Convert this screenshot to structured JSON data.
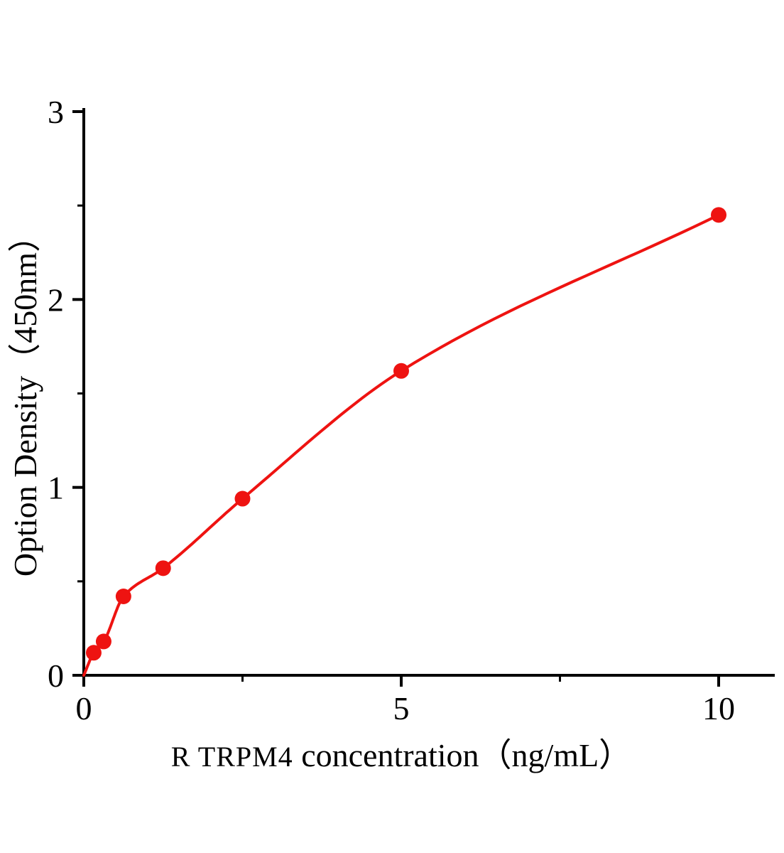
{
  "chart_data": {
    "type": "scatter",
    "title": "",
    "xlabel_protein": "R TRPM4",
    "xlabel_suffix": " concentration（ng/mL）",
    "xlabel": "R TRPM4  concentration（ng/mL）",
    "ylabel": "Option Density（450nm）",
    "x": [
      0.156,
      0.3125,
      0.625,
      1.25,
      2.5,
      5,
      10
    ],
    "y": [
      0.12,
      0.18,
      0.42,
      0.57,
      0.94,
      1.62,
      2.45
    ],
    "curve_origin": [
      0,
      0
    ],
    "xlim": [
      0,
      10
    ],
    "ylim": [
      0,
      3
    ],
    "x_major_ticks": [
      0,
      5,
      10
    ],
    "x_minor_ticks": [
      2.5,
      7.5
    ],
    "y_major_ticks": [
      0,
      1,
      2,
      3
    ],
    "y_minor_ticks": [
      0.5,
      1.5,
      2.5
    ],
    "grid": "off",
    "legend": "none",
    "line_color": "#ee1311",
    "marker_color": "#ee1311",
    "marker_radius": 11,
    "axis_color": "#000000",
    "background": "#ffffff"
  }
}
